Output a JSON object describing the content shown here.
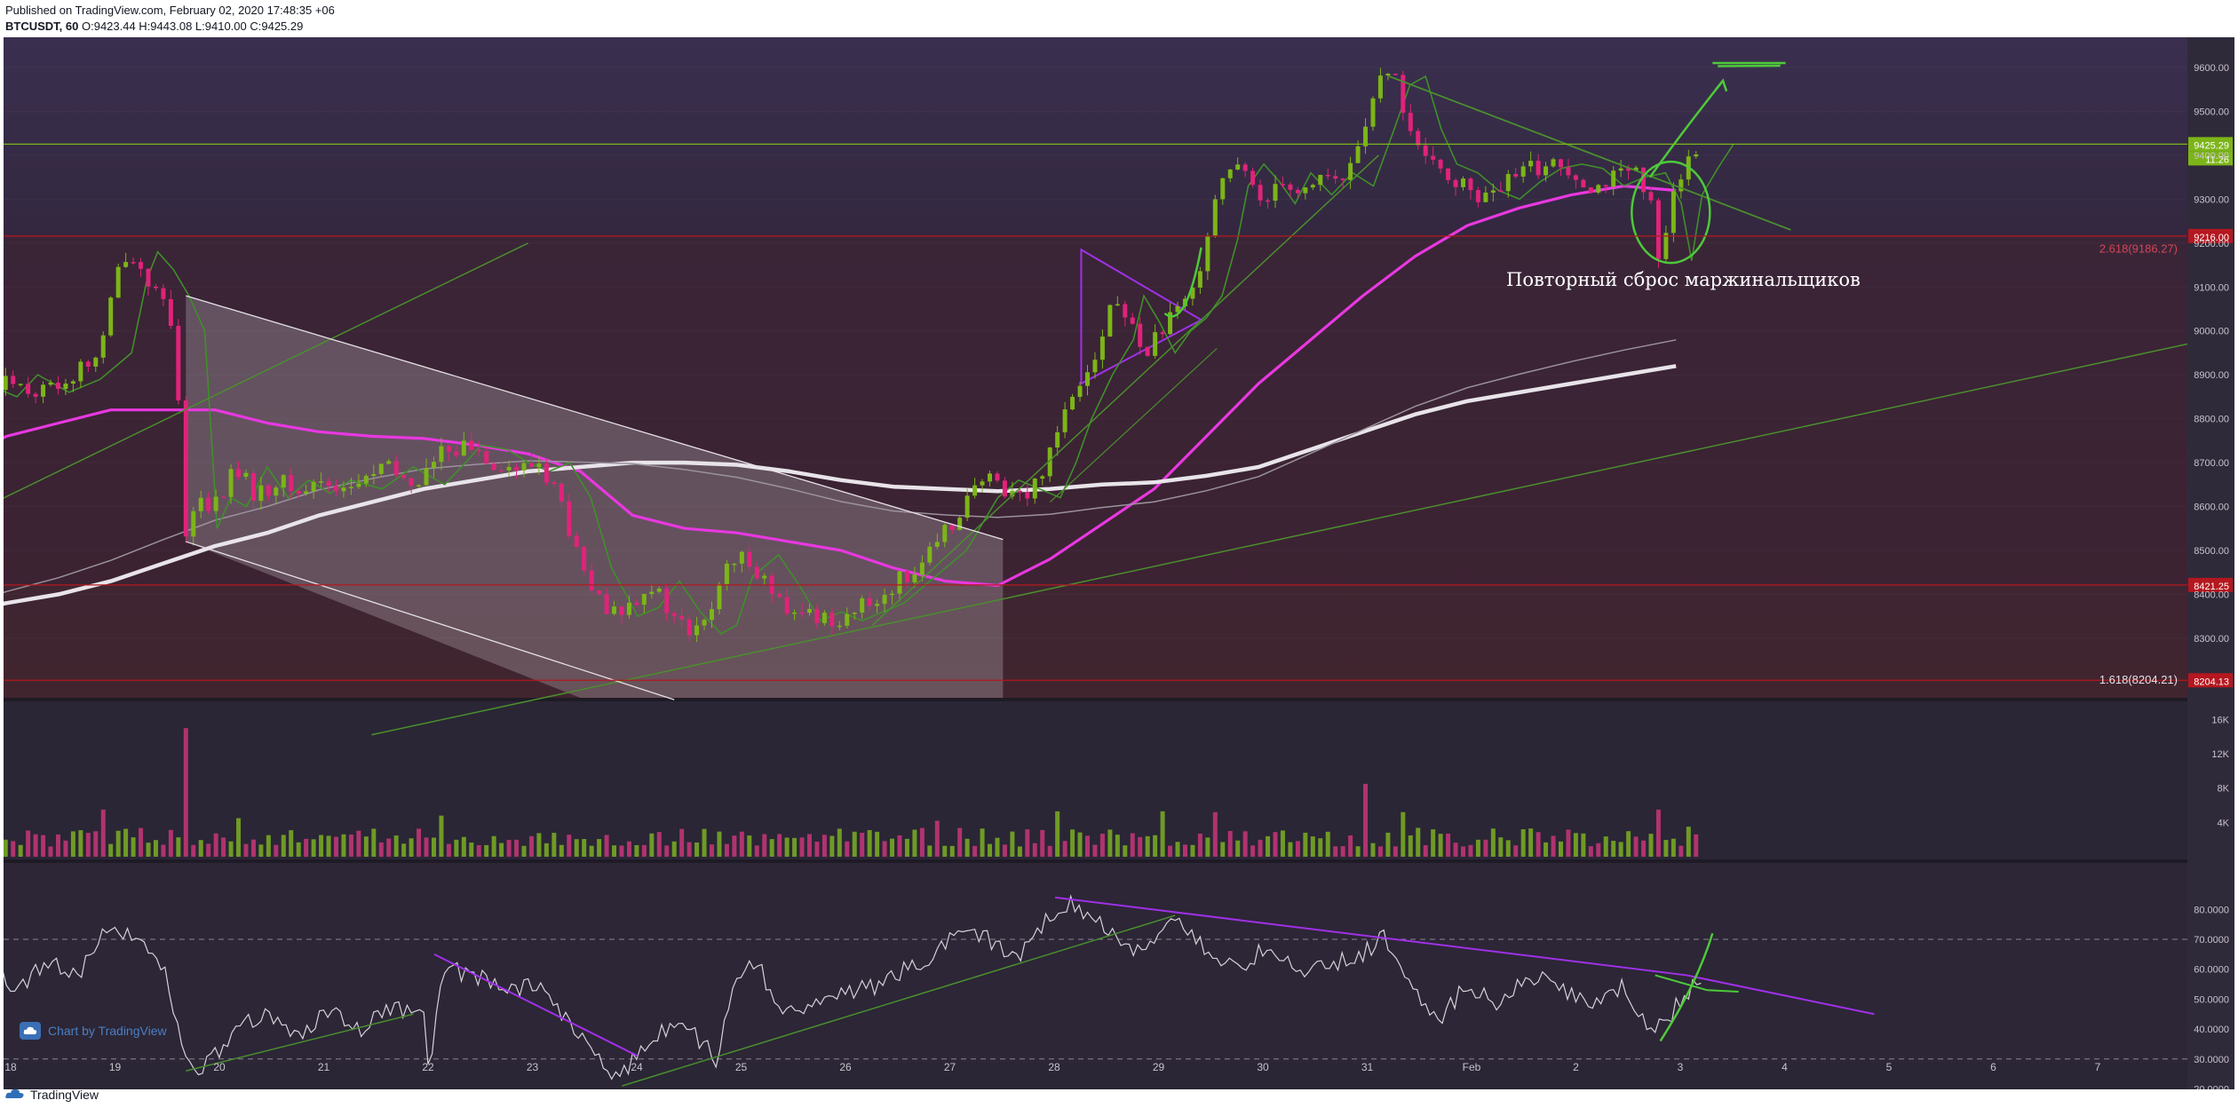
{
  "header": {
    "published": "Published on TradingView.com, February 02, 2020 17:48:35 +06",
    "symbol": "BTCUSDT, 60",
    "ohlc": "O:9423.44 H:9443.08 L:9410.00 C:9425.29"
  },
  "footer": {
    "brand": "TradingView"
  },
  "watermark": {
    "text": "Chart by TradingView"
  },
  "annotation": {
    "text": "Повторный сброс маржинальщиков"
  },
  "colors": {
    "background": "#2a2635",
    "bull": "#7cb518",
    "bear": "#e0237a",
    "ma50": "#e838e0",
    "ma200": "#e8e4ea",
    "trend_green": "#4ec93a",
    "trend_purple": "#a030e8",
    "level_red": "#b5171f",
    "current_price": "#7cb518"
  },
  "chart_data": [
    {
      "type": "candlestick",
      "pane": "price",
      "x_ticks": [
        "18",
        "19",
        "20",
        "21",
        "22",
        "23",
        "24",
        "25",
        "26",
        "27",
        "28",
        "29",
        "30",
        "31",
        "Feb",
        "2",
        "3",
        "4",
        "5",
        "6",
        "7"
      ],
      "y_ticks": [
        "9600.00",
        "9500.00",
        "9400.00",
        "9300.00",
        "9200.00",
        "9100.00",
        "9000.00",
        "8900.00",
        "8800.00",
        "8700.00",
        "8600.00",
        "8500.00",
        "8400.00",
        "8300.00"
      ],
      "ylim": [
        8160,
        9625
      ],
      "price_series": [
        [
          17.2,
          8870
        ],
        [
          17.5,
          8880
        ],
        [
          17.8,
          8850
        ],
        [
          18.0,
          8900
        ],
        [
          18.3,
          8860
        ],
        [
          18.6,
          8890
        ],
        [
          18.9,
          8950
        ],
        [
          19.05,
          9120
        ],
        [
          19.15,
          9180
        ],
        [
          19.3,
          9140
        ],
        [
          19.45,
          9080
        ],
        [
          19.6,
          9000
        ],
        [
          19.72,
          8550
        ],
        [
          19.85,
          8620
        ],
        [
          20.0,
          8600
        ],
        [
          20.2,
          8690
        ],
        [
          20.4,
          8620
        ],
        [
          20.6,
          8660
        ],
        [
          20.8,
          8630
        ],
        [
          21.0,
          8660
        ],
        [
          21.3,
          8640
        ],
        [
          21.6,
          8690
        ],
        [
          21.9,
          8650
        ],
        [
          22.1,
          8700
        ],
        [
          22.25,
          8740
        ],
        [
          22.5,
          8730
        ],
        [
          22.7,
          8700
        ],
        [
          22.9,
          8680
        ],
        [
          23.1,
          8700
        ],
        [
          23.3,
          8620
        ],
        [
          23.5,
          8460
        ],
        [
          23.75,
          8350
        ],
        [
          23.95,
          8370
        ],
        [
          24.15,
          8430
        ],
        [
          24.35,
          8360
        ],
        [
          24.55,
          8310
        ],
        [
          24.7,
          8330
        ],
        [
          24.85,
          8440
        ],
        [
          25.1,
          8490
        ],
        [
          25.3,
          8420
        ],
        [
          25.5,
          8340
        ],
        [
          25.7,
          8360
        ],
        [
          25.9,
          8340
        ],
        [
          26.1,
          8360
        ],
        [
          26.3,
          8380
        ],
        [
          26.5,
          8420
        ],
        [
          26.7,
          8460
        ],
        [
          26.9,
          8500
        ],
        [
          27.05,
          8560
        ],
        [
          27.2,
          8620
        ],
        [
          27.4,
          8660
        ],
        [
          27.6,
          8640
        ],
        [
          27.8,
          8620
        ],
        [
          27.95,
          8700
        ],
        [
          28.1,
          8800
        ],
        [
          28.3,
          8900
        ],
        [
          28.5,
          8980
        ],
        [
          28.6,
          9080
        ],
        [
          28.75,
          9020
        ],
        [
          28.9,
          8950
        ],
        [
          29.05,
          9000
        ],
        [
          29.2,
          9030
        ],
        [
          29.35,
          9080
        ],
        [
          29.5,
          9210
        ],
        [
          29.6,
          9330
        ],
        [
          29.75,
          9380
        ],
        [
          29.9,
          9340
        ],
        [
          30.05,
          9290
        ],
        [
          30.2,
          9360
        ],
        [
          30.4,
          9310
        ],
        [
          30.6,
          9360
        ],
        [
          30.8,
          9330
        ],
        [
          31.0,
          9460
        ],
        [
          31.15,
          9560
        ],
        [
          31.3,
          9580
        ],
        [
          31.45,
          9460
        ],
        [
          31.6,
          9380
        ],
        [
          31.8,
          9360
        ],
        [
          32.0,
          9320
        ],
        [
          32.2,
          9300
        ],
        [
          32.4,
          9340
        ],
        [
          32.6,
          9370
        ],
        [
          32.8,
          9380
        ],
        [
          33.0,
          9370
        ],
        [
          33.2,
          9330
        ],
        [
          33.4,
          9350
        ],
        [
          33.6,
          9360
        ],
        [
          33.75,
          9290
        ],
        [
          33.85,
          9160
        ],
        [
          33.95,
          9310
        ],
        [
          34.1,
          9370
        ],
        [
          34.25,
          9425
        ]
      ],
      "moving_averages": [
        {
          "name": "MA 50",
          "points": [
            [
              17.2,
              8660
            ],
            [
              17.6,
              8710
            ],
            [
              18.0,
              8760
            ],
            [
              18.5,
              8790
            ],
            [
              19.0,
              8820
            ],
            [
              19.5,
              8820
            ],
            [
              20.0,
              8820
            ],
            [
              20.5,
              8790
            ],
            [
              21.0,
              8770
            ],
            [
              21.5,
              8760
            ],
            [
              22.0,
              8755
            ],
            [
              22.5,
              8740
            ],
            [
              23.0,
              8720
            ],
            [
              23.5,
              8680
            ],
            [
              24.0,
              8580
            ],
            [
              24.5,
              8550
            ],
            [
              25.0,
              8540
            ],
            [
              25.5,
              8520
            ],
            [
              26.0,
              8500
            ],
            [
              26.5,
              8460
            ],
            [
              27.0,
              8430
            ],
            [
              27.5,
              8420
            ],
            [
              28.0,
              8480
            ],
            [
              28.5,
              8560
            ],
            [
              29.0,
              8640
            ],
            [
              29.5,
              8760
            ],
            [
              30.0,
              8880
            ],
            [
              30.5,
              8980
            ],
            [
              31.0,
              9080
            ],
            [
              31.5,
              9170
            ],
            [
              32.0,
              9240
            ],
            [
              32.5,
              9280
            ],
            [
              33.0,
              9310
            ],
            [
              33.5,
              9330
            ],
            [
              34.0,
              9320
            ]
          ]
        },
        {
          "name": "MA 200",
          "points": [
            [
              17.2,
              8330
            ],
            [
              17.6,
              8360
            ],
            [
              18.0,
              8380
            ],
            [
              18.5,
              8400
            ],
            [
              19.0,
              8430
            ],
            [
              19.5,
              8470
            ],
            [
              20.0,
              8510
            ],
            [
              20.5,
              8540
            ],
            [
              21.0,
              8580
            ],
            [
              21.5,
              8610
            ],
            [
              22.0,
              8640
            ],
            [
              22.5,
              8660
            ],
            [
              23.0,
              8680
            ],
            [
              23.5,
              8690
            ],
            [
              24.0,
              8700
            ],
            [
              24.5,
              8700
            ],
            [
              25.0,
              8695
            ],
            [
              25.5,
              8680
            ],
            [
              26.0,
              8660
            ],
            [
              26.5,
              8645
            ],
            [
              27.0,
              8640
            ],
            [
              27.5,
              8635
            ],
            [
              28.0,
              8640
            ],
            [
              28.5,
              8650
            ],
            [
              29.0,
              8655
            ],
            [
              29.5,
              8670
            ],
            [
              30.0,
              8690
            ],
            [
              30.5,
              8730
            ],
            [
              31.0,
              8770
            ],
            [
              31.5,
              8810
            ],
            [
              32.0,
              8840
            ],
            [
              32.5,
              8860
            ],
            [
              33.0,
              8880
            ],
            [
              33.5,
              8900
            ],
            [
              34.0,
              8920
            ]
          ]
        }
      ],
      "horizontal_levels": [
        {
          "price": 9425.29,
          "label": "9425.29",
          "color": "#7cb518"
        },
        {
          "price": 9216.0,
          "label": "9216.00",
          "color": "#b5171f"
        },
        {
          "price": 8421.25,
          "label": "8421.25",
          "color": "#b5171f"
        },
        {
          "price": 8204.13,
          "label": "8204.13",
          "color": "#b5171f"
        }
      ],
      "fib_labels": [
        {
          "price": 9186.27,
          "text": "2.618(9186.27)"
        },
        {
          "price": 8204.21,
          "text": "1.618(8204.21)"
        }
      ],
      "countdown": "11:26"
    },
    {
      "type": "bar",
      "pane": "volume",
      "y_ticks": [
        "16K",
        "12K",
        "8K",
        "4K"
      ],
      "ylim": [
        0,
        17000
      ],
      "spikes": [
        {
          "x": 19.72,
          "value": 15000
        },
        {
          "x": 18.95,
          "value": 5500
        },
        {
          "x": 20.2,
          "value": 4500
        },
        {
          "x": 22.15,
          "value": 4800
        },
        {
          "x": 26.95,
          "value": 4200
        },
        {
          "x": 28.1,
          "value": 5300
        },
        {
          "x": 29.05,
          "value": 5300
        },
        {
          "x": 29.55,
          "value": 5200
        },
        {
          "x": 31.0,
          "value": 8500
        },
        {
          "x": 31.4,
          "value": 5200
        },
        {
          "x": 33.85,
          "value": 5500
        },
        {
          "x": 34.1,
          "value": 3500
        }
      ]
    },
    {
      "type": "line",
      "pane": "oscillator",
      "y_ticks": [
        "80.0000",
        "70.0000",
        "60.0000",
        "50.0000",
        "40.0000",
        "30.0000",
        "20.0000"
      ],
      "ylim": [
        15,
        86
      ],
      "levels": [
        70,
        30
      ],
      "points": [
        [
          17.2,
          60
        ],
        [
          17.5,
          56
        ],
        [
          17.8,
          61
        ],
        [
          18.1,
          54
        ],
        [
          18.4,
          62
        ],
        [
          18.7,
          58
        ],
        [
          18.95,
          74
        ],
        [
          19.2,
          72
        ],
        [
          19.5,
          61
        ],
        [
          19.72,
          28
        ],
        [
          19.9,
          27
        ],
        [
          20.2,
          40
        ],
        [
          20.5,
          45
        ],
        [
          20.8,
          38
        ],
        [
          21.1,
          46
        ],
        [
          21.4,
          40
        ],
        [
          21.7,
          48
        ],
        [
          22.0,
          43
        ],
        [
          22.05,
          28
        ],
        [
          22.2,
          60
        ],
        [
          22.5,
          58
        ],
        [
          22.8,
          52
        ],
        [
          23.1,
          55
        ],
        [
          23.4,
          42
        ],
        [
          23.7,
          28
        ],
        [
          23.9,
          24
        ],
        [
          24.1,
          35
        ],
        [
          24.4,
          42
        ],
        [
          24.6,
          38
        ],
        [
          24.8,
          30
        ],
        [
          25.0,
          58
        ],
        [
          25.2,
          62
        ],
        [
          25.4,
          46
        ],
        [
          25.7,
          48
        ],
        [
          26.0,
          52
        ],
        [
          26.3,
          54
        ],
        [
          26.6,
          60
        ],
        [
          26.9,
          65
        ],
        [
          27.1,
          72
        ],
        [
          27.4,
          70
        ],
        [
          27.7,
          64
        ],
        [
          28.0,
          78
        ],
        [
          28.2,
          82
        ],
        [
          28.5,
          76
        ],
        [
          28.8,
          65
        ],
        [
          29.0,
          69
        ],
        [
          29.2,
          78
        ],
        [
          29.5,
          66
        ],
        [
          29.8,
          60
        ],
        [
          30.1,
          68
        ],
        [
          30.4,
          58
        ],
        [
          30.7,
          62
        ],
        [
          31.0,
          65
        ],
        [
          31.2,
          71
        ],
        [
          31.4,
          60
        ],
        [
          31.7,
          42
        ],
        [
          32.0,
          55
        ],
        [
          32.3,
          48
        ],
        [
          32.6,
          58
        ],
        [
          32.9,
          54
        ],
        [
          33.2,
          48
        ],
        [
          33.5,
          54
        ],
        [
          33.75,
          38
        ],
        [
          33.95,
          45
        ],
        [
          34.1,
          52
        ],
        [
          34.25,
          58
        ]
      ]
    }
  ]
}
